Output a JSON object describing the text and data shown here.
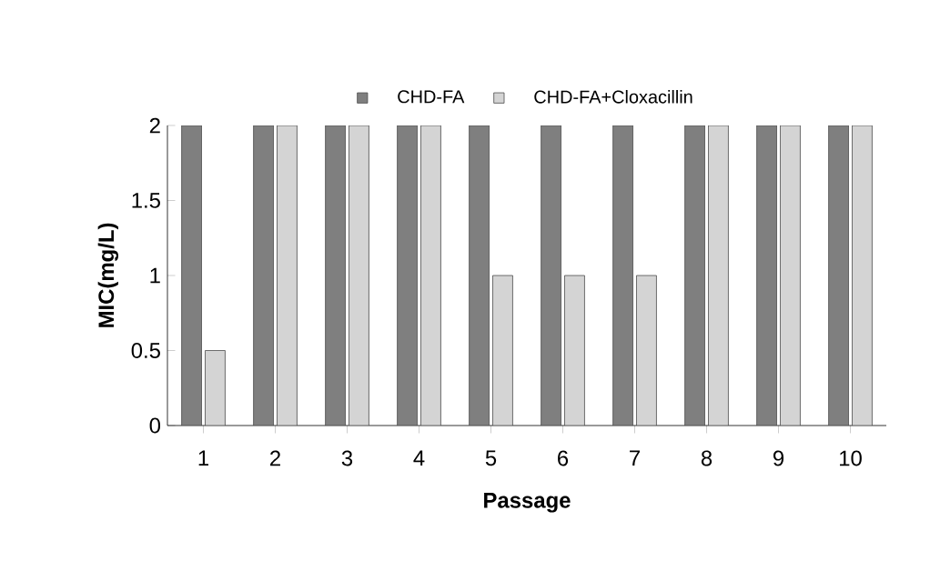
{
  "chart_data": {
    "type": "bar",
    "xlabel": "Passage",
    "ylabel": "MIC(mg/L)",
    "categories": [
      "1",
      "2",
      "3",
      "4",
      "5",
      "6",
      "7",
      "8",
      "9",
      "10"
    ],
    "series": [
      {
        "name": "CHD-FA",
        "color": "#7f7f7f",
        "values": [
          2,
          2,
          2,
          2,
          2,
          2,
          2,
          2,
          2,
          2
        ]
      },
      {
        "name": "CHD-FA+Cloxacillin",
        "color": "#d4d4d4",
        "values": [
          0.5,
          2,
          2,
          2,
          1,
          1,
          1,
          2,
          2,
          2
        ]
      }
    ],
    "ylim": [
      0,
      2
    ],
    "yticks": [
      0,
      0.5,
      1,
      1.5,
      2
    ],
    "legend": "top",
    "grid": false
  }
}
